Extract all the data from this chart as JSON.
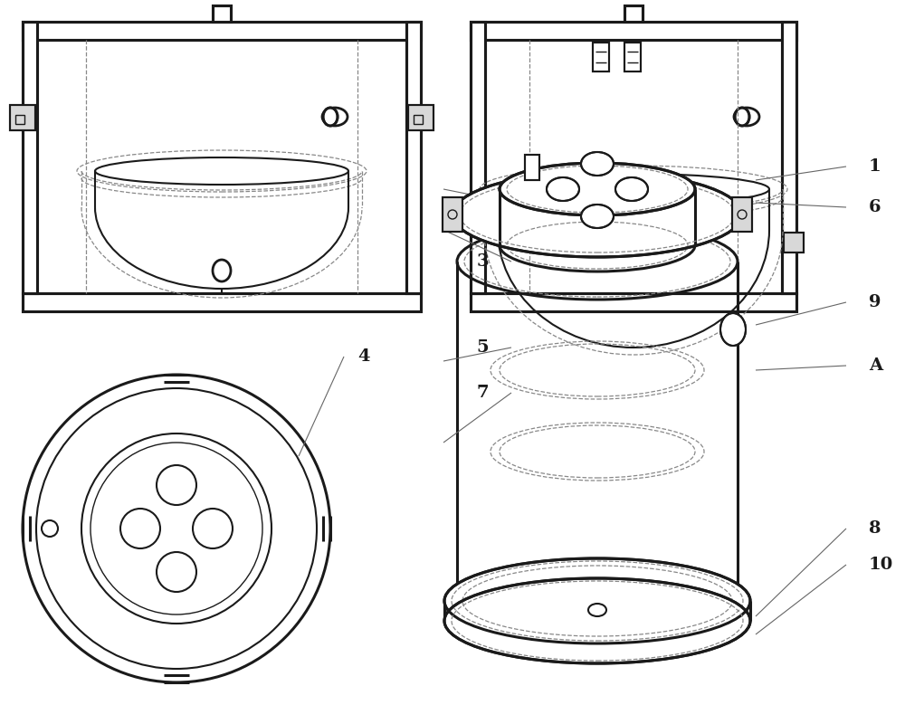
{
  "bg_color": "#ffffff",
  "line_color": "#1a1a1a",
  "dashed_color": "#888888",
  "lw_thick": 2.2,
  "lw_medium": 1.5,
  "lw_thin": 1.0,
  "lw_dash": 0.9,
  "label_fontsize": 14,
  "label_fontweight": "bold"
}
